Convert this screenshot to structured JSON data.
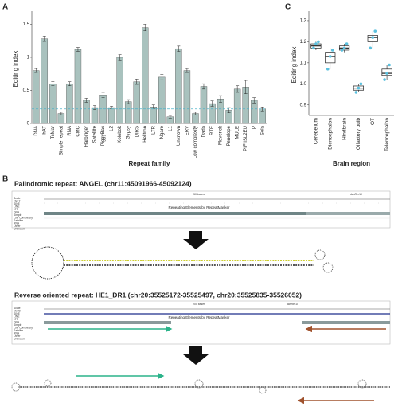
{
  "chart_data": [
    {
      "type": "bar",
      "panel_label": "A",
      "x_label": "Repeat family",
      "y_label": "Editing index",
      "categories": [
        "DNA",
        "hAT",
        "TcMar",
        "Simple repeat",
        "RNA",
        "CMC",
        "Harbinger",
        "Satellite",
        "PiggyBac",
        "L2",
        "Kolobok",
        "Gypsy",
        "DIRS",
        "Helitron",
        "LTR",
        "Ngaro",
        "L1",
        "Unknown",
        "ERV",
        "Low complexity",
        "Dada",
        "RTE",
        "Maverick",
        "Penelope",
        "MULE",
        "PIF ISL2EU",
        "P",
        "Sola"
      ],
      "values": [
        0.8,
        1.28,
        0.6,
        0.15,
        0.6,
        1.12,
        0.35,
        0.24,
        0.43,
        0.24,
        1.0,
        0.33,
        0.63,
        1.45,
        0.25,
        0.7,
        0.1,
        1.13,
        0.8,
        0.15,
        0.56,
        0.3,
        0.37,
        0.2,
        0.52,
        0.55,
        0.35,
        0.22
      ],
      "errors": [
        0.03,
        0.04,
        0.03,
        0.02,
        0.03,
        0.03,
        0.03,
        0.03,
        0.04,
        0.02,
        0.04,
        0.03,
        0.04,
        0.05,
        0.03,
        0.04,
        0.02,
        0.04,
        0.03,
        0.02,
        0.04,
        0.04,
        0.05,
        0.04,
        0.05,
        0.1,
        0.04,
        0.03
      ],
      "color": "#a9c2be",
      "reference_line": 0.22,
      "reference_color": "#4fb3c9",
      "ylim": [
        0,
        1.65
      ],
      "yticks": [
        0,
        0.5,
        1,
        1.5
      ]
    },
    {
      "type": "box",
      "panel_label": "C",
      "x_label": "Brain region",
      "y_label": "Editing index",
      "categories": [
        "Cerebellum",
        "Diencephalon",
        "Hindbrain",
        "Olfactory bulb",
        "OT",
        "Telencephalon"
      ],
      "stats": [
        {
          "low": 1.16,
          "q1": 1.17,
          "median": 1.18,
          "q3": 1.19,
          "high": 1.2
        },
        {
          "low": 1.07,
          "q1": 1.1,
          "median": 1.13,
          "q3": 1.15,
          "high": 1.17
        },
        {
          "low": 1.15,
          "q1": 1.16,
          "median": 1.17,
          "q3": 1.18,
          "high": 1.19
        },
        {
          "low": 0.96,
          "q1": 0.97,
          "median": 0.98,
          "q3": 0.99,
          "high": 1.0
        },
        {
          "low": 1.17,
          "q1": 1.2,
          "median": 1.22,
          "q3": 1.23,
          "high": 1.25
        },
        {
          "low": 1.02,
          "q1": 1.04,
          "median": 1.05,
          "q3": 1.07,
          "high": 1.09
        }
      ],
      "points": [
        [
          1.17,
          1.19,
          1.2
        ],
        [
          1.07,
          1.13,
          1.16
        ],
        [
          1.16,
          1.17,
          1.19
        ],
        [
          0.96,
          0.98,
          1.0
        ],
        [
          1.17,
          1.22,
          1.25
        ],
        [
          1.02,
          1.05,
          1.09
        ]
      ],
      "point_color": "#5bc0de",
      "ylim": [
        0.85,
        1.33
      ],
      "yticks": [
        {
          "value": 0.9,
          "label": "0.9"
        },
        {
          "value": 1.0,
          "label": "1.0"
        },
        {
          "value": 1.1,
          "label": "1.1"
        },
        {
          "value": 1.2,
          "label": "1.2"
        },
        {
          "value": 1.3,
          "label": "1.3"
        }
      ]
    }
  ],
  "panel_b": {
    "label": "B",
    "rows": [
      {
        "title": "Palindromic repeat: ANGEL (chr11:45091966-45092124)",
        "scale": "50 bases",
        "assembly": "danRer10",
        "track_title": "Repeating Elements by RepeatMasker",
        "track_labels": [
          "Scale",
          "chr11:",
          "SINE",
          "LINE",
          "LTR",
          "DNA",
          "Simple",
          "Low Complexity",
          "Satellite",
          "RNA",
          "Other",
          "Unknown"
        ]
      },
      {
        "title": "Reverse oriented repeat: HE1_DR1 (chr20:35525172-35525497, chr20:35525835-35526052)",
        "scale": "200 bases",
        "assembly": "danRer10",
        "track_title": "Repeating Elements by RepeatMasker",
        "track_labels": [
          "Scale",
          "chr20:",
          "SINE",
          "LINE",
          "LTR",
          "DNA",
          "Simple",
          "Low Complexity",
          "Satellite",
          "RNA",
          "Other",
          "Unknown"
        ]
      }
    ]
  }
}
